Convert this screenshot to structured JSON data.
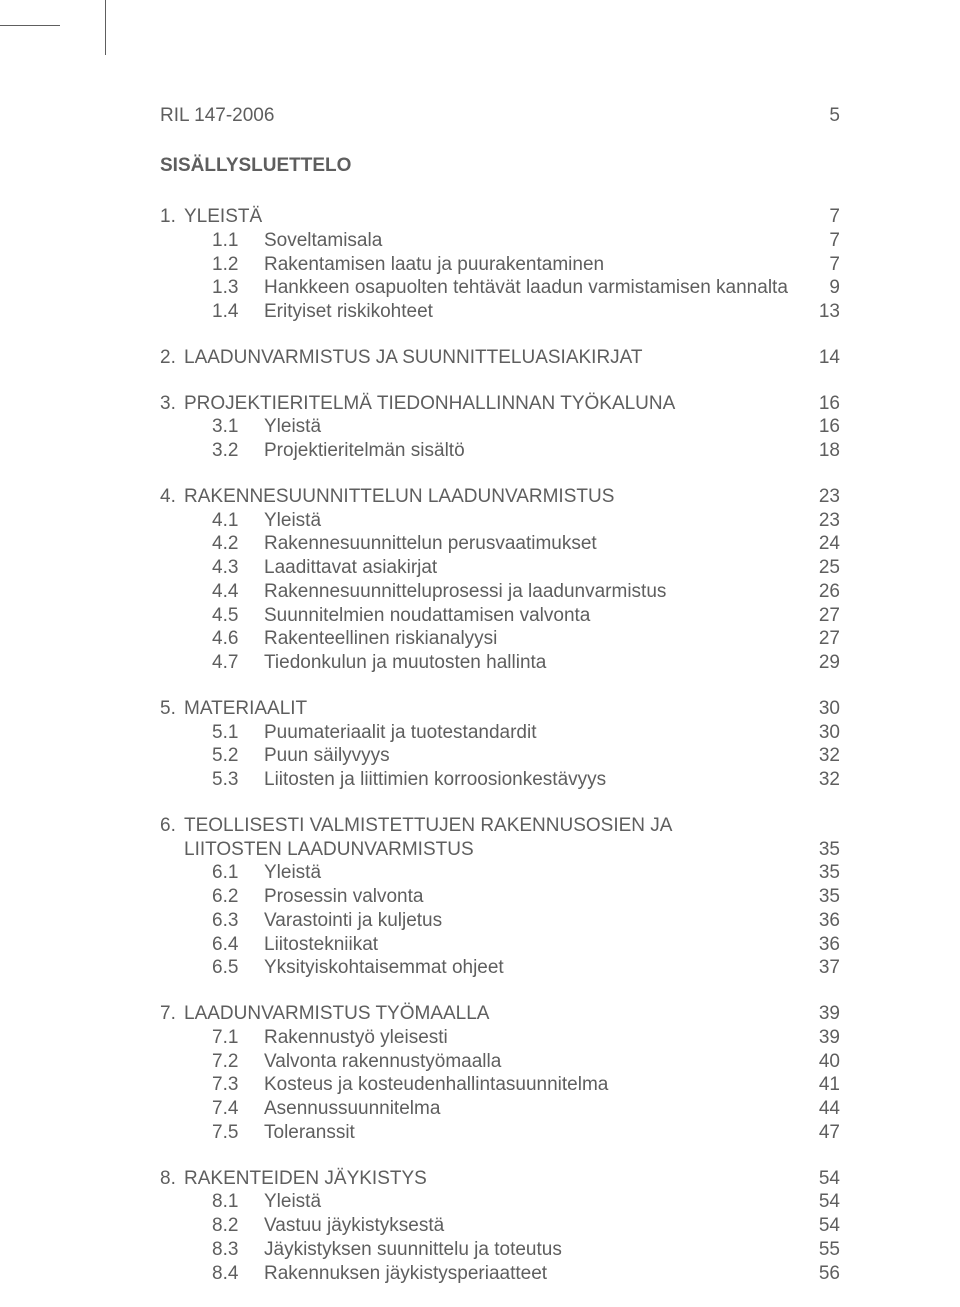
{
  "header": {
    "doc_id": "RIL 147-2006",
    "page_number": "5"
  },
  "toc_title": "SISÄLLYSLUETTELO",
  "colors": {
    "text": "#5e5e5e",
    "background": "#ffffff",
    "border": "#5e5e5e"
  },
  "typography": {
    "font_family": "Arial, Helvetica, sans-serif",
    "font_size_pt": 14
  },
  "sections": [
    {
      "num": "1.",
      "title": "YLEISTÄ",
      "page": "7",
      "subs": [
        {
          "num": "1.1",
          "title": "Soveltamisala",
          "page": "7"
        },
        {
          "num": "1.2",
          "title": "Rakentamisen laatu ja puurakentaminen",
          "page": "7"
        },
        {
          "num": "1.3",
          "title": "Hankkeen osapuolten tehtävät laadun varmistamisen kannalta",
          "page": "9"
        },
        {
          "num": "1.4",
          "title": "Erityiset riskikohteet",
          "page": "13"
        }
      ]
    },
    {
      "num": "2.",
      "title": "LAADUNVARMISTUS JA SUUNNITTELUASIAKIRJAT",
      "page": "14",
      "subs": []
    },
    {
      "num": "3.",
      "title": "PROJEKTIERITELMÄ TIEDONHALLINNAN TYÖKALUNA",
      "page": "16",
      "subs": [
        {
          "num": "3.1",
          "title": "Yleistä",
          "page": "16"
        },
        {
          "num": "3.2",
          "title": "Projektieritelmän sisältö",
          "page": "18"
        }
      ]
    },
    {
      "num": "4.",
      "title": "RAKENNESUUNNITTELUN LAADUNVARMISTUS",
      "page": "23",
      "subs": [
        {
          "num": "4.1",
          "title": "Yleistä",
          "page": "23"
        },
        {
          "num": "4.2",
          "title": "Rakennesuunnittelun perusvaatimukset",
          "page": "24"
        },
        {
          "num": "4.3",
          "title": "Laadittavat asiakirjat",
          "page": "25"
        },
        {
          "num": "4.4",
          "title": "Rakennesuunnitteluprosessi ja laadunvarmistus",
          "page": "26"
        },
        {
          "num": "4.5",
          "title": "Suunnitelmien noudattamisen valvonta",
          "page": "27"
        },
        {
          "num": "4.6",
          "title": "Rakenteellinen riskianalyysi",
          "page": "27"
        },
        {
          "num": "4.7",
          "title": "Tiedonkulun ja muutosten hallinta",
          "page": "29"
        }
      ]
    },
    {
      "num": "5.",
      "title": "MATERIAALIT",
      "page": "30",
      "subs": [
        {
          "num": "5.1",
          "title": "Puumateriaalit ja tuotestandardit",
          "page": "30"
        },
        {
          "num": "5.2",
          "title": "Puun säilyvyys",
          "page": "32"
        },
        {
          "num": "5.3",
          "title": "Liitosten ja liittimien korroosionkestävyys",
          "page": "32"
        }
      ]
    },
    {
      "num": "6.",
      "title": "TEOLLISESTI VALMISTETTUJEN RAKENNUSOSIEN JA",
      "title2": "LIITOSTEN LAADUNVARMISTUS",
      "page": "35",
      "subs": [
        {
          "num": "6.1",
          "title": "Yleistä",
          "page": "35"
        },
        {
          "num": "6.2",
          "title": "Prosessin valvonta",
          "page": "35"
        },
        {
          "num": "6.3",
          "title": "Varastointi ja kuljetus",
          "page": "36"
        },
        {
          "num": "6.4",
          "title": "Liitostekniikat",
          "page": "36"
        },
        {
          "num": "6.5",
          "title": "Yksityiskohtaisemmat ohjeet",
          "page": "37"
        }
      ]
    },
    {
      "num": "7.",
      "title": "LAADUNVARMISTUS TYÖMAALLA",
      "page": "39",
      "subs": [
        {
          "num": "7.1",
          "title": "Rakennustyö yleisesti",
          "page": "39"
        },
        {
          "num": "7.2",
          "title": "Valvonta rakennustyömaalla",
          "page": "40"
        },
        {
          "num": "7.3",
          "title": "Kosteus ja kosteudenhallintasuunnitelma",
          "page": "41"
        },
        {
          "num": "7.4",
          "title": "Asennussuunnitelma",
          "page": "44"
        },
        {
          "num": "7.5",
          "title": "Toleranssit",
          "page": "47"
        }
      ]
    },
    {
      "num": "8.",
      "title": "RAKENTEIDEN JÄYKISTYS",
      "page": "54",
      "subs": [
        {
          "num": "8.1",
          "title": "Yleistä",
          "page": "54"
        },
        {
          "num": "8.2",
          "title": "Vastuu jäykistyksestä",
          "page": "54"
        },
        {
          "num": "8.3",
          "title": "Jäykistyksen suunnittelu ja toteutus",
          "page": "55"
        },
        {
          "num": "8.4",
          "title": "Rakennuksen jäykistysperiaatteet",
          "page": "56"
        }
      ]
    }
  ]
}
